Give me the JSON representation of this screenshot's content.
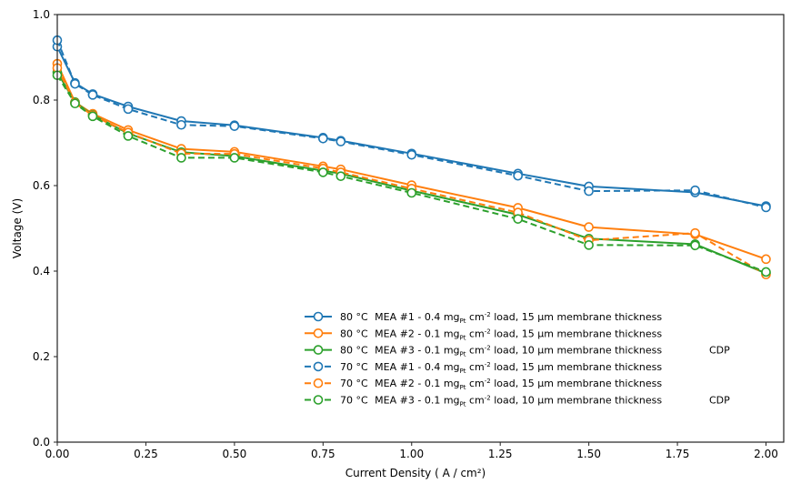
{
  "chart_data": {
    "type": "line",
    "title": "",
    "xlabel": "Current Density ( A / cm²)",
    "ylabel": "Voltage (V)",
    "xlim": [
      0.0,
      2.05
    ],
    "ylim": [
      0.0,
      1.0
    ],
    "xticks": [
      "0.00",
      "0.25",
      "0.50",
      "0.75",
      "1.00",
      "1.25",
      "1.50",
      "1.75",
      "2.00"
    ],
    "yticks": [
      "0.0",
      "0.2",
      "0.4",
      "0.6",
      "0.8",
      "1.0"
    ],
    "grid": false,
    "legend_position": "lower-right",
    "series": [
      {
        "legend": {
          "temp": "80 °C",
          "mea": "MEA #1 - 0.4 mg",
          "sub": "Pt",
          "mid": " cm",
          "sup": "-2",
          "rest": " load, 15 μm membrane thickness",
          "suffix": ""
        },
        "color": "#1f77b4",
        "linestyle": "solid",
        "x": [
          0.0,
          0.05,
          0.1,
          0.2,
          0.35,
          0.5,
          0.75,
          0.8,
          1.0,
          1.3,
          1.5,
          1.8,
          2.0
        ],
        "y": [
          0.925,
          0.84,
          0.814,
          0.785,
          0.751,
          0.741,
          0.712,
          0.705,
          0.675,
          0.628,
          0.598,
          0.584,
          0.552
        ]
      },
      {
        "legend": {
          "temp": "80 °C",
          "mea": "MEA #2 - 0.1 mg",
          "sub": "Pt",
          "mid": " cm",
          "sup": "-2",
          "rest": " load, 15 μm membrane thickness",
          "suffix": ""
        },
        "color": "#ff7f0e",
        "linestyle": "solid",
        "x": [
          0.0,
          0.05,
          0.1,
          0.2,
          0.35,
          0.5,
          0.75,
          0.8,
          1.0,
          1.3,
          1.5,
          1.8,
          2.0
        ],
        "y": [
          0.885,
          0.795,
          0.768,
          0.73,
          0.686,
          0.679,
          0.645,
          0.638,
          0.601,
          0.548,
          0.503,
          0.486,
          0.428
        ]
      },
      {
        "legend": {
          "temp": "80 °C",
          "mea": "MEA #3 - 0.1 mg",
          "sub": "Pt",
          "mid": " cm",
          "sup": "-2",
          "rest": " load, 10 μm membrane thickness",
          "suffix": "CDP"
        },
        "color": "#2ca02c",
        "linestyle": "solid",
        "x": [
          0.0,
          0.05,
          0.1,
          0.2,
          0.35,
          0.5,
          0.75,
          0.8,
          1.0,
          1.3,
          1.5,
          1.8,
          2.0
        ],
        "y": [
          0.865,
          0.795,
          0.765,
          0.722,
          0.678,
          0.669,
          0.635,
          0.628,
          0.588,
          0.532,
          0.476,
          0.463,
          0.395
        ]
      },
      {
        "legend": {
          "temp": "70 °C",
          "mea": "MEA #1 - 0.4 mg",
          "sub": "Pt",
          "mid": " cm",
          "sup": "-2",
          "rest": " load, 15 μm membrane thickness",
          "suffix": ""
        },
        "color": "#1f77b4",
        "linestyle": "dashed",
        "x": [
          0.0,
          0.05,
          0.1,
          0.2,
          0.35,
          0.5,
          0.75,
          0.8,
          1.0,
          1.3,
          1.5,
          1.8,
          2.0
        ],
        "y": [
          0.94,
          0.838,
          0.812,
          0.779,
          0.742,
          0.739,
          0.71,
          0.703,
          0.672,
          0.623,
          0.587,
          0.589,
          0.549
        ]
      },
      {
        "legend": {
          "temp": "70 °C",
          "mea": "MEA #2 - 0.1 mg",
          "sub": "Pt",
          "mid": " cm",
          "sup": "-2",
          "rest": " load, 15 μm membrane thickness",
          "suffix": ""
        },
        "color": "#ff7f0e",
        "linestyle": "dashed",
        "x": [
          0.0,
          0.05,
          0.1,
          0.2,
          0.35,
          0.5,
          0.75,
          0.8,
          1.0,
          1.3,
          1.5,
          1.8,
          2.0
        ],
        "y": [
          0.875,
          0.793,
          0.764,
          0.724,
          0.675,
          0.674,
          0.64,
          0.631,
          0.593,
          0.537,
          0.472,
          0.489,
          0.392
        ]
      },
      {
        "legend": {
          "temp": "70 °C",
          "mea": "MEA #3 - 0.1 mg",
          "sub": "Pt",
          "mid": " cm",
          "sup": "-2",
          "rest": " load, 10 μm membrane thickness",
          "suffix": "CDP"
        },
        "color": "#2ca02c",
        "linestyle": "dashed",
        "x": [
          0.0,
          0.05,
          0.1,
          0.2,
          0.35,
          0.5,
          0.75,
          0.8,
          1.0,
          1.3,
          1.5,
          1.8,
          2.0
        ],
        "y": [
          0.858,
          0.792,
          0.762,
          0.716,
          0.665,
          0.665,
          0.631,
          0.622,
          0.583,
          0.522,
          0.461,
          0.46,
          0.398
        ]
      }
    ]
  }
}
